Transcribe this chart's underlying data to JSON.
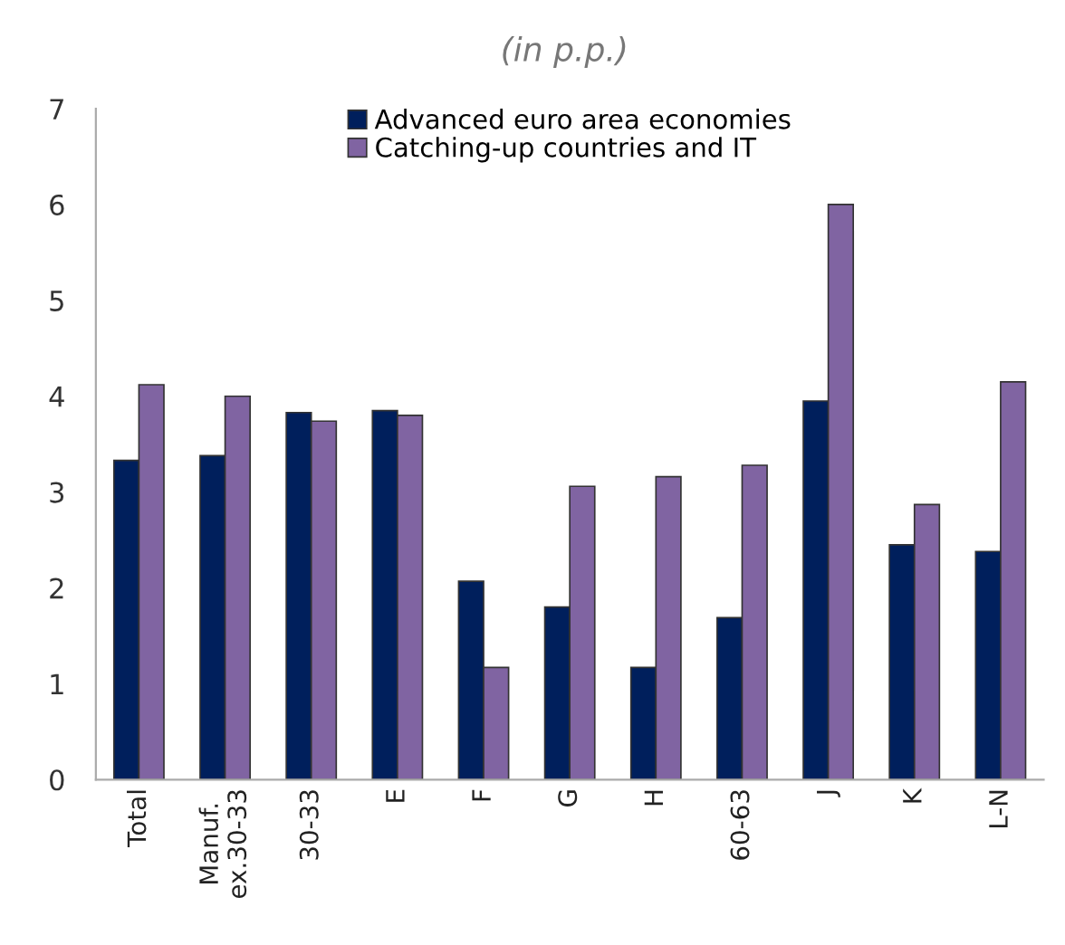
{
  "chart_data": {
    "type": "bar",
    "subtitle": "(in p.p.)",
    "categories": [
      "Total",
      "Manuf.\nex.30-33",
      "30-33",
      "E",
      "F",
      "G",
      "H",
      "60-63",
      "J",
      "K",
      "L-N"
    ],
    "series": [
      {
        "name": "Advanced euro area economies",
        "color": "#001f5c",
        "values": [
          3.33,
          3.38,
          3.83,
          3.85,
          2.07,
          1.8,
          1.17,
          1.69,
          3.95,
          2.45,
          2.38
        ]
      },
      {
        "name": "Catching-up countries and IT",
        "color": "#8064a2",
        "values": [
          4.12,
          4.0,
          3.74,
          3.8,
          1.17,
          3.06,
          3.16,
          3.28,
          6.0,
          2.87,
          4.15
        ]
      }
    ],
    "ylim": [
      0,
      7
    ],
    "yticks": [
      0,
      1,
      2,
      3,
      4,
      5,
      6,
      7
    ],
    "grid": false,
    "legend": "top"
  }
}
